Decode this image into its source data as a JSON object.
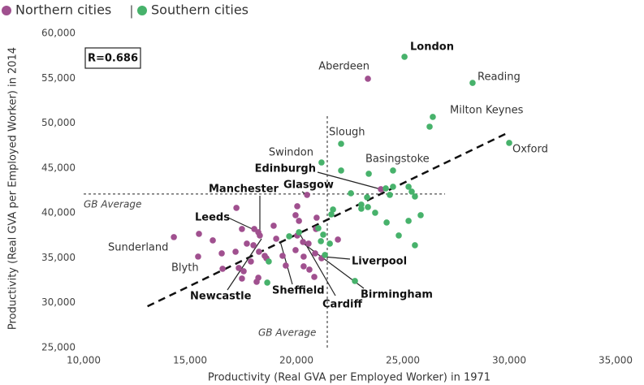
{
  "chart_data": {
    "type": "scatter",
    "xlabel": "Productivity (Real GVA per Employed Worker) in 1971",
    "ylabel": "Productivity (Real GVA per Employed Worker) in 2014",
    "xlim": [
      10000,
      35000
    ],
    "ylim": [
      25000,
      60000
    ],
    "xticks": [
      {
        "value": 10000,
        "label": "10,000"
      },
      {
        "value": 15000,
        "label": "15,000"
      },
      {
        "value": 20000,
        "label": "20,000"
      },
      {
        "value": 25000,
        "label": "25,000"
      },
      {
        "value": 30000,
        "label": "30,000"
      },
      {
        "value": 35000,
        "label": "35,000"
      }
    ],
    "yticks": [
      {
        "value": 25000,
        "label": "25,000"
      },
      {
        "value": 30000,
        "label": "30,000"
      },
      {
        "value": 35000,
        "label": "35,000"
      },
      {
        "value": 40000,
        "label": "40,000"
      },
      {
        "value": 45000,
        "label": "45,000"
      },
      {
        "value": 50000,
        "label": "50,000"
      },
      {
        "value": 55000,
        "label": "55,000"
      },
      {
        "value": 60000,
        "label": "60,000"
      }
    ],
    "legend_separator": "|",
    "correlation_label": "R=0.686",
    "reference_lines": {
      "x": 21450,
      "y": 42100,
      "label": "GB Average"
    },
    "trend_line": {
      "x": [
        13000,
        30000
      ],
      "y": [
        29600,
        49000
      ]
    },
    "series": [
      {
        "name": "Northern cities",
        "color": "#a0508f",
        "x": [
          23360,
          23970,
          20500,
          17180,
          15420,
          14240,
          15380,
          16070,
          16490,
          17440,
          18020,
          18210,
          18280,
          18930,
          19050,
          17670,
          17140,
          17980,
          18240,
          18510,
          17860,
          17290,
          17520,
          18210,
          18590,
          18130,
          19350,
          19500,
          19960,
          20040,
          20120,
          20310,
          20340,
          20570,
          20880,
          20920,
          21180,
          21950,
          20340,
          20610,
          20840,
          19960,
          20950,
          16530,
          17440,
          20040
        ],
        "values": [
          54940,
          42640,
          42010,
          40560,
          37670,
          37310,
          35140,
          36940,
          35500,
          38210,
          38210,
          37850,
          37490,
          38570,
          37120,
          36580,
          35680,
          36400,
          35680,
          35220,
          34590,
          33870,
          33510,
          32780,
          34950,
          32330,
          35220,
          34140,
          35860,
          37490,
          39110,
          36760,
          35130,
          36580,
          35500,
          38210,
          34950,
          37030,
          34050,
          33690,
          32870,
          39750,
          39470,
          33780,
          32690,
          40740
        ]
      },
      {
        "name": "Southern cities",
        "color": "#47b26b",
        "x": [
          25080,
          28280,
          26410,
          26260,
          30000,
          22100,
          21180,
          24540,
          22100,
          23400,
          22560,
          23050,
          23050,
          23320,
          23360,
          23700,
          24200,
          24540,
          24390,
          25270,
          25420,
          25570,
          24240,
          25270,
          25840,
          24810,
          25570,
          21720,
          21640,
          21570,
          21260,
          21150,
          21340,
          21030,
          19660,
          18700,
          18630,
          22750,
          20120
        ],
        "values": [
          57380,
          54480,
          50690,
          49600,
          47800,
          47700,
          45620,
          44720,
          44720,
          44360,
          42190,
          40470,
          40920,
          41740,
          40650,
          40020,
          42730,
          42910,
          42010,
          42910,
          42370,
          41830,
          38930,
          39110,
          39750,
          37490,
          36400,
          40380,
          39840,
          36580,
          37580,
          36850,
          35320,
          38300,
          37400,
          34590,
          32240,
          32420,
          37850
        ]
      }
    ],
    "annotations": [
      {
        "text": "London",
        "bold": true
      },
      {
        "text": "Aberdeen",
        "bold": false
      },
      {
        "text": "Reading",
        "bold": false
      },
      {
        "text": "Milton Keynes",
        "bold": false
      },
      {
        "text": "Oxford",
        "bold": false
      },
      {
        "text": "Slough",
        "bold": false
      },
      {
        "text": "Swindon",
        "bold": false
      },
      {
        "text": "Basingstoke",
        "bold": false
      },
      {
        "text": "Edinburgh",
        "bold": true
      },
      {
        "text": "Manchester",
        "bold": true
      },
      {
        "text": "Glasgow",
        "bold": true
      },
      {
        "text": "Leeds",
        "bold": true
      },
      {
        "text": "Sunderland",
        "bold": false
      },
      {
        "text": "Blyth",
        "bold": false
      },
      {
        "text": "Newcastle",
        "bold": true
      },
      {
        "text": "Sheffield",
        "bold": true
      },
      {
        "text": "Cardiff",
        "bold": true
      },
      {
        "text": "Birmingham",
        "bold": true
      },
      {
        "text": "Liverpool",
        "bold": true
      }
    ]
  }
}
